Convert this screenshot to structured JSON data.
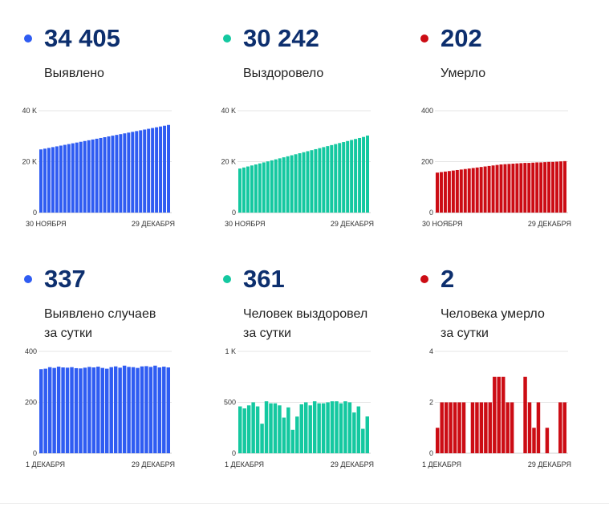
{
  "colors": {
    "blue": "#2f5cf2",
    "green": "#14c8a0",
    "red": "#cc0c14",
    "value": "#0d2f6e"
  },
  "panels": [
    {
      "id": "detected-total",
      "value": "34 405",
      "label": [
        "Выявлено"
      ],
      "color": "blue",
      "x_labels": [
        "30 НОЯБРЯ",
        "29 ДЕКАБРЯ"
      ],
      "y_ticks": [
        "0",
        "20 K",
        "40 K"
      ],
      "y_max": 40000
    },
    {
      "id": "recovered-total",
      "value": "30 242",
      "label": [
        "Выздоровело"
      ],
      "color": "green",
      "x_labels": [
        "30 НОЯБРЯ",
        "29 ДЕКАБРЯ"
      ],
      "y_ticks": [
        "0",
        "20 K",
        "40 K"
      ],
      "y_max": 40000
    },
    {
      "id": "deaths-total",
      "value": "202",
      "label": [
        "Умерло"
      ],
      "color": "red",
      "x_labels": [
        "30 НОЯБРЯ",
        "29 ДЕКАБРЯ"
      ],
      "y_ticks": [
        "0",
        "200",
        "400"
      ],
      "y_max": 400
    },
    {
      "id": "detected-daily",
      "value": "337",
      "label": [
        "Выявлено случаев",
        "за сутки"
      ],
      "color": "blue",
      "x_labels": [
        "1 ДЕКАБРЯ",
        "29 ДЕКАБРЯ"
      ],
      "y_ticks": [
        "0",
        "200",
        "400"
      ],
      "y_max": 400
    },
    {
      "id": "recovered-daily",
      "value": "361",
      "label": [
        "Человек выздоровел",
        "за сутки"
      ],
      "color": "green",
      "x_labels": [
        "1 ДЕКАБРЯ",
        "29 ДЕКАБРЯ"
      ],
      "y_ticks": [
        "0",
        "500",
        "1 K"
      ],
      "y_max": 1000
    },
    {
      "id": "deaths-daily",
      "value": "2",
      "label": [
        "Человека умерло",
        "за сутки"
      ],
      "color": "red",
      "x_labels": [
        "1 ДЕКАБРЯ",
        "29 ДЕКАБРЯ"
      ],
      "y_ticks": [
        "0",
        "2",
        "4"
      ],
      "y_max": 4
    }
  ],
  "chart_data": [
    {
      "type": "bar",
      "series_id": "detected-total",
      "ylim": [
        0,
        40000
      ],
      "values": [
        24800,
        25100,
        25400,
        25700,
        26000,
        26300,
        26600,
        26900,
        27200,
        27500,
        27800,
        28100,
        28400,
        28700,
        29000,
        29300,
        29600,
        29900,
        30200,
        30500,
        30800,
        31100,
        31400,
        31700,
        32000,
        32300,
        32600,
        32900,
        33200,
        33500,
        33800,
        34100,
        34405
      ]
    },
    {
      "type": "bar",
      "series_id": "recovered-total",
      "ylim": [
        0,
        40000
      ],
      "values": [
        17300,
        17700,
        18100,
        18500,
        18900,
        19300,
        19700,
        20100,
        20500,
        20900,
        21300,
        21700,
        22100,
        22500,
        22900,
        23300,
        23700,
        24100,
        24500,
        24900,
        25300,
        25700,
        26100,
        26500,
        26900,
        27300,
        27700,
        28100,
        28500,
        28900,
        29300,
        29700,
        30242
      ]
    },
    {
      "type": "bar",
      "series_id": "deaths-total",
      "ylim": [
        0,
        400
      ],
      "values": [
        157,
        159,
        161,
        163,
        165,
        167,
        169,
        171,
        173,
        175,
        177,
        179,
        181,
        183,
        185,
        187,
        189,
        190,
        191,
        192,
        193,
        194,
        195,
        195,
        196,
        197,
        197,
        198,
        199,
        199,
        200,
        201,
        202
      ]
    },
    {
      "type": "bar",
      "series_id": "detected-daily",
      "ylim": [
        0,
        400
      ],
      "values": [
        330,
        332,
        338,
        335,
        340,
        337,
        336,
        338,
        334,
        333,
        336,
        339,
        337,
        340,
        335,
        332,
        338,
        341,
        336,
        344,
        339,
        338,
        335,
        341,
        342,
        339,
        344,
        337,
        340,
        337
      ]
    },
    {
      "type": "bar",
      "series_id": "recovered-daily",
      "ylim": [
        0,
        1000
      ],
      "values": [
        460,
        440,
        470,
        500,
        460,
        290,
        510,
        490,
        490,
        470,
        350,
        450,
        230,
        360,
        480,
        500,
        470,
        510,
        490,
        490,
        500,
        510,
        510,
        490,
        510,
        500,
        400,
        460,
        240,
        361
      ]
    },
    {
      "type": "bar",
      "series_id": "deaths-daily",
      "ylim": [
        0,
        4
      ],
      "values": [
        1,
        2,
        2,
        2,
        2,
        2,
        2,
        0,
        2,
        2,
        2,
        2,
        2,
        3,
        3,
        3,
        2,
        2,
        0,
        0,
        3,
        2,
        1,
        2,
        0,
        1,
        0,
        0,
        2,
        2
      ]
    }
  ]
}
